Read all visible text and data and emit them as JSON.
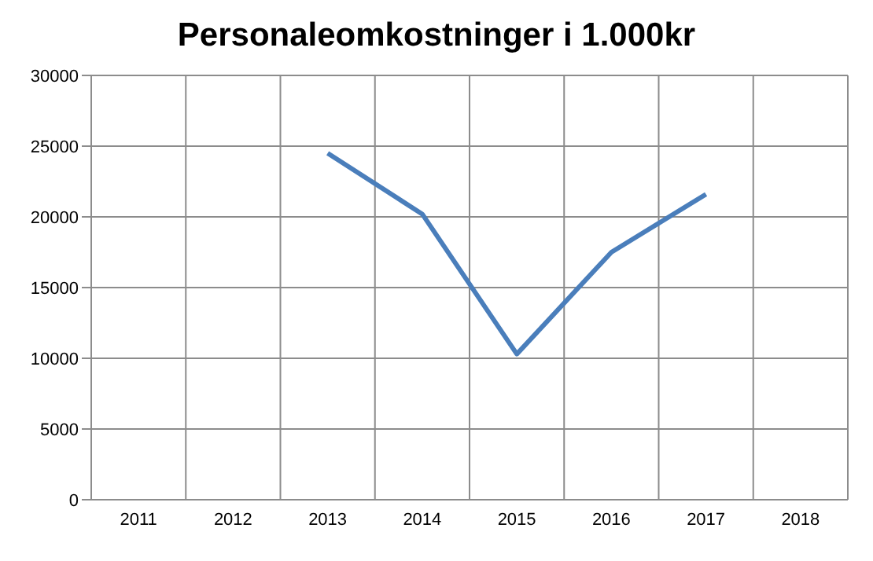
{
  "chart_data": {
    "type": "line",
    "title": "Personaleomkostninger i 1.000kr",
    "categories": [
      "2011",
      "2012",
      "2013",
      "2014",
      "2015",
      "2016",
      "2017",
      "2018"
    ],
    "series": [
      {
        "color": "#4a7ebb",
        "values": [
          null,
          null,
          24500,
          20200,
          10300,
          17500,
          21600,
          null
        ]
      }
    ],
    "ylim": [
      0,
      30000
    ],
    "yticks": [
      0,
      5000,
      10000,
      15000,
      20000,
      25000,
      30000
    ],
    "grid": true,
    "legend": false,
    "marker": "none",
    "line_style": "solid"
  }
}
